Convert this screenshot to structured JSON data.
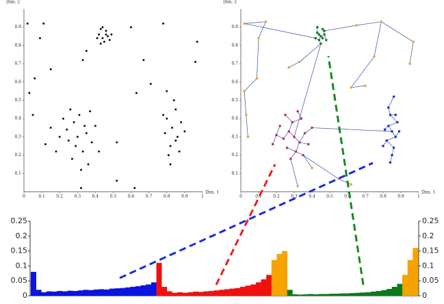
{
  "chart_data": [
    {
      "type": "scatter",
      "xlabel": "Dim. 1",
      "ylabel": "Dim. 2",
      "color": "#111111",
      "xlim": [
        0,
        1
      ],
      "ylim": [
        0,
        1
      ],
      "xticks": [
        0,
        0.1,
        0.2,
        0.3,
        0.4,
        0.5,
        0.6,
        0.7,
        0.8,
        0.9,
        1
      ],
      "yticks": [
        0.1,
        0.2,
        0.3,
        0.4,
        0.5,
        0.6,
        0.7,
        0.8,
        0.9
      ],
      "x": [
        0.42,
        0.44,
        0.46,
        0.45,
        0.47,
        0.43,
        0.48,
        0.41,
        0.46,
        0.44,
        0.49,
        0.43,
        0.3,
        0.25,
        0.35,
        0.28,
        0.33,
        0.2,
        0.38,
        0.27,
        0.31,
        0.15,
        0.4,
        0.22,
        0.36,
        0.29,
        0.34,
        0.18,
        0.24,
        0.32,
        0.42,
        0.26,
        0.12,
        0.37,
        0.83,
        0.8,
        0.86,
        0.82,
        0.85,
        0.79,
        0.88,
        0.81,
        0.84,
        0.87,
        0.78,
        0.9,
        0.82,
        0.85,
        0.8,
        0.02,
        0.11,
        0.09,
        0.06,
        0.15,
        0.03,
        0.05,
        0.33,
        0.35,
        0.67,
        0.78,
        0.97,
        0.96,
        0.6,
        0.63,
        0.52,
        0.62,
        0.32,
        0.52,
        0.71
      ],
      "y": [
        0.86,
        0.84,
        0.88,
        0.82,
        0.85,
        0.89,
        0.83,
        0.84,
        0.86,
        0.9,
        0.86,
        0.81,
        0.3,
        0.28,
        0.32,
        0.38,
        0.22,
        0.3,
        0.27,
        0.18,
        0.42,
        0.35,
        0.36,
        0.4,
        0.15,
        0.25,
        0.36,
        0.22,
        0.34,
        0.12,
        0.22,
        0.45,
        0.26,
        0.44,
        0.35,
        0.4,
        0.3,
        0.25,
        0.45,
        0.32,
        0.38,
        0.2,
        0.5,
        0.22,
        0.42,
        0.33,
        0.15,
        0.28,
        0.55,
        0.92,
        0.92,
        0.84,
        0.62,
        0.67,
        0.54,
        0.42,
        0.72,
        0.77,
        0.72,
        0.92,
        0.82,
        0.71,
        0.9,
        0.54,
        0.27,
        0.02,
        0.02,
        0.06,
        0.59
      ]
    },
    {
      "type": "tree",
      "xlabel": "Dim. 1",
      "ylabel": "Dim. 2",
      "edge_color": "#3a4aa8",
      "xlim": [
        0,
        1
      ],
      "ylim": [
        0,
        1
      ],
      "xticks": [
        0,
        0.1,
        0.2,
        0.3,
        0.4,
        0.5,
        0.6,
        0.7,
        0.8,
        0.9,
        1
      ],
      "yticks": [
        0.1,
        0.2,
        0.3,
        0.4,
        0.5,
        0.6,
        0.7,
        0.8,
        0.9
      ],
      "series": [
        {
          "color": "#1e7a2a",
          "x": [
            0.45,
            0.43,
            0.47,
            0.44,
            0.46,
            0.42,
            0.48,
            0.45,
            0.43,
            0.47,
            0.44,
            0.46
          ],
          "y": [
            0.85,
            0.87,
            0.86,
            0.83,
            0.89,
            0.84,
            0.83,
            0.81,
            0.9,
            0.88,
            0.86,
            0.84
          ]
        },
        {
          "color": "#c0306a",
          "x": [
            0.3,
            0.27,
            0.33,
            0.24,
            0.36,
            0.29,
            0.31,
            0.2,
            0.38,
            0.26,
            0.34,
            0.22,
            0.4,
            0.28,
            0.32,
            0.18,
            0.35,
            0.25
          ],
          "y": [
            0.3,
            0.33,
            0.27,
            0.29,
            0.32,
            0.38,
            0.22,
            0.31,
            0.26,
            0.24,
            0.4,
            0.36,
            0.35,
            0.18,
            0.44,
            0.26,
            0.2,
            0.42
          ]
        },
        {
          "color": "#2030e0",
          "x": [
            0.85,
            0.83,
            0.87,
            0.82,
            0.88,
            0.84,
            0.86,
            0.81,
            0.89,
            0.85,
            0.83,
            0.87,
            0.8,
            0.86,
            0.84
          ],
          "y": [
            0.33,
            0.36,
            0.3,
            0.28,
            0.38,
            0.42,
            0.24,
            0.34,
            0.33,
            0.2,
            0.46,
            0.42,
            0.25,
            0.52,
            0.16
          ]
        },
        {
          "color": "#f0a040",
          "x": [
            0.02,
            0.14,
            0.1,
            0.09,
            0.02,
            0.03,
            0.33,
            0.27,
            0.65,
            0.79,
            0.75,
            0.97,
            0.95,
            0.62,
            0.55,
            0.62,
            0.32,
            0.7,
            0.4,
            0.04
          ],
          "y": [
            0.92,
            0.93,
            0.84,
            0.62,
            0.55,
            0.42,
            0.71,
            0.68,
            0.91,
            0.93,
            0.74,
            0.82,
            0.7,
            0.57,
            0.07,
            0.04,
            0.03,
            0.58,
            0.13,
            0.3
          ]
        }
      ]
    },
    {
      "type": "area",
      "ylim": [
        0,
        0.25
      ],
      "yticks": [
        0,
        0.05,
        0.1,
        0.15,
        0.2,
        0.25
      ],
      "segments": [
        {
          "color": "#0a14e0",
          "values": [
            0.08,
            0.02,
            0.012,
            0.015,
            0.014,
            0.016,
            0.015,
            0.017,
            0.016,
            0.018,
            0.02,
            0.019,
            0.021,
            0.022,
            0.021,
            0.024,
            0.025,
            0.026,
            0.028,
            0.03,
            0.032,
            0.035,
            0.038,
            0.045
          ]
        },
        {
          "color": "#f01010",
          "values": [
            0.11,
            0.03,
            0.015,
            0.01,
            0.012,
            0.01,
            0.012,
            0.014,
            0.013,
            0.015,
            0.016,
            0.018,
            0.02,
            0.022,
            0.024,
            0.026,
            0.03,
            0.034,
            0.038,
            0.045,
            0.055,
            0.07
          ]
        },
        {
          "color": "#f5a300",
          "values": [
            0.12,
            0.14,
            0.15
          ]
        },
        {
          "color": "#0c7a1c",
          "values": [
            0.02,
            0.005,
            0.004,
            0.005,
            0.006,
            0.005,
            0.006,
            0.006,
            0.007,
            0.007,
            0.008,
            0.008,
            0.009,
            0.01,
            0.011,
            0.012,
            0.014,
            0.016,
            0.019,
            0.023,
            0.03,
            0.04
          ]
        },
        {
          "color": "#f5a300",
          "values": [
            0.07,
            0.12,
            0.16
          ]
        }
      ]
    }
  ]
}
